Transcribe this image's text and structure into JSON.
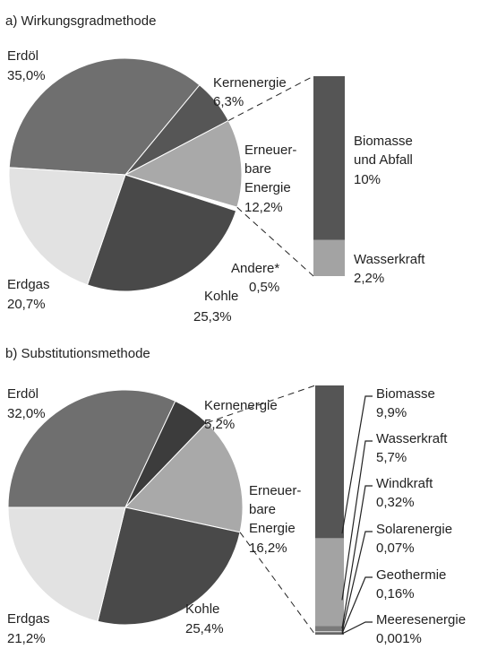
{
  "chart_data": [
    {
      "type": "pie",
      "title": "a) Wirkungsgradmethode",
      "categories": [
        "Erdöl",
        "Kernenergie",
        "Erneuer-\nbare\nEnergie",
        "Andere*",
        "Kohle",
        "Erdgas"
      ],
      "values": [
        35.0,
        6.3,
        12.2,
        0.5,
        25.3,
        20.7
      ],
      "value_labels": [
        "35,0%",
        "6,3%",
        "12,2%",
        "0,5%",
        "25,3%",
        "20,7%"
      ],
      "colors": [
        "#6f6f6f",
        "#565656",
        "#a9a9a9",
        "#ffffff",
        "#494949",
        "#e2e2e2"
      ],
      "breakdown": {
        "categories": [
          "Biomasse\nund Abfall",
          "Wasserkraft"
        ],
        "values": [
          10,
          2.2
        ],
        "value_labels": [
          "10%",
          "2,2%"
        ],
        "colors": [
          "#555555",
          "#a3a3a3"
        ]
      }
    },
    {
      "type": "pie",
      "title": "b) Substitutionsmethode",
      "categories": [
        "Erdöl",
        "Kernenergie",
        "Erneuer-\nbare\nEnergie",
        "Kohle",
        "Erdgas"
      ],
      "values": [
        32.0,
        5.2,
        16.2,
        25.4,
        21.2
      ],
      "value_labels": [
        "32,0%",
        "5,2%",
        "16,2%",
        "25,4%",
        "21,2%"
      ],
      "colors": [
        "#6f6f6f",
        "#3c3c3c",
        "#a9a9a9",
        "#494949",
        "#e2e2e2"
      ],
      "breakdown": {
        "categories": [
          "Biomasse",
          "Wasserkraft",
          "Windkraft",
          "Solarenergie",
          "Geothermie",
          "Meeresenergie"
        ],
        "values": [
          9.9,
          5.7,
          0.32,
          0.07,
          0.16,
          0.001
        ],
        "value_labels": [
          "9,9%",
          "5,7%",
          "0,32%",
          "0,07%",
          "0,16%",
          "0,001%"
        ],
        "colors": [
          "#555555",
          "#a3a3a3",
          "#7a7a7a",
          "#cccccc",
          "#666666",
          "#333333"
        ]
      }
    }
  ]
}
